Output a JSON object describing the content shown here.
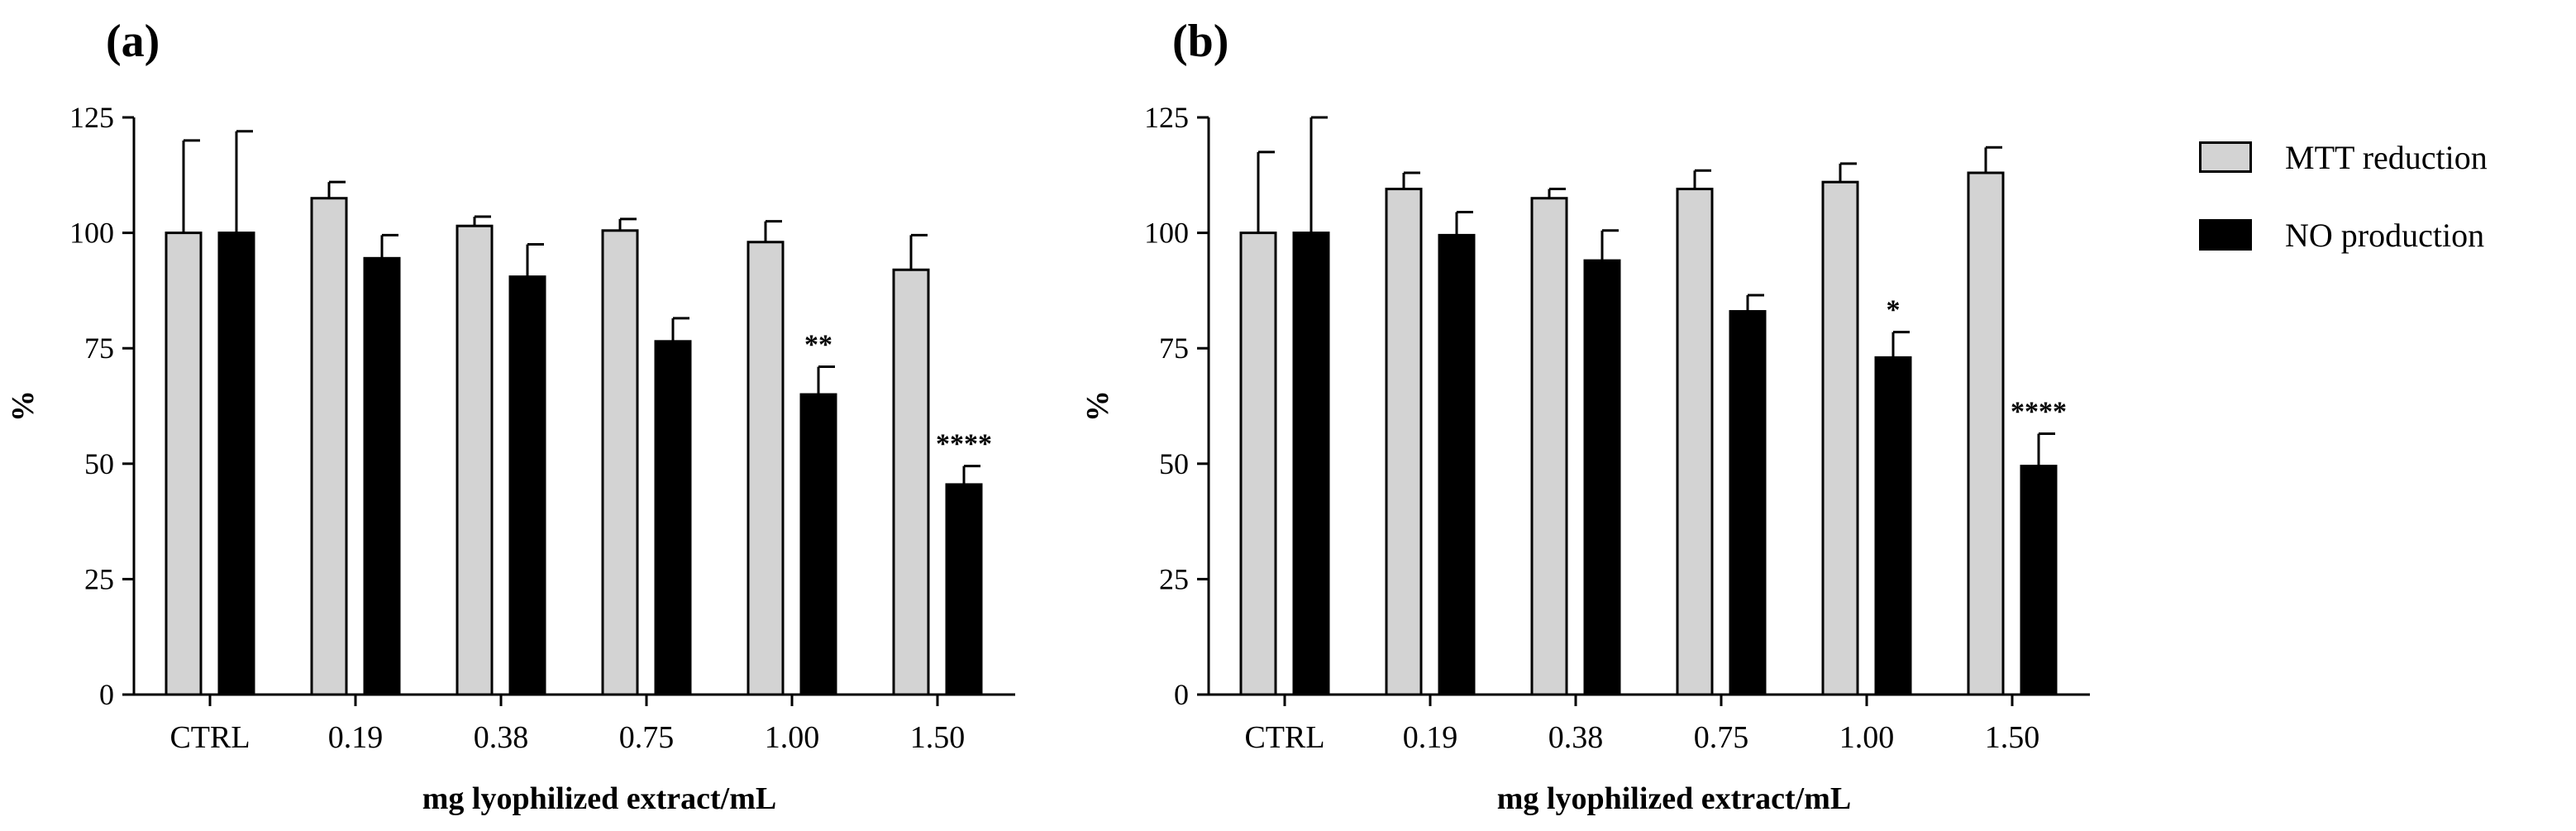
{
  "chart_data": [
    {
      "type": "bar",
      "panel_label": "(a)",
      "xlabel": "mg lyophilized extract/mL",
      "ylabel": "%",
      "ylim": [
        0,
        125
      ],
      "yticks": [
        0,
        25,
        50,
        75,
        100,
        125
      ],
      "categories": [
        "CTRL",
        "0.19",
        "0.38",
        "0.75",
        "1.00",
        "1.50"
      ],
      "series": [
        {
          "name": "MTT reduction",
          "color": "#d3d3d3",
          "values": [
            100,
            107.5,
            101.5,
            100.5,
            98,
            92
          ],
          "errors": [
            20,
            3.5,
            2,
            2.5,
            4.5,
            7.5
          ],
          "significance": [
            "",
            "",
            "",
            "",
            "",
            ""
          ]
        },
        {
          "name": "NO production",
          "color": "#000000",
          "values": [
            100,
            94.5,
            90.5,
            76.5,
            65,
            45.5
          ],
          "errors": [
            22,
            5,
            7,
            5,
            6,
            4
          ],
          "significance": [
            "",
            "",
            "",
            "",
            "**",
            "****"
          ]
        }
      ],
      "grid": false
    },
    {
      "type": "bar",
      "panel_label": "(b)",
      "xlabel": "mg lyophilized extract/mL",
      "ylabel": "%",
      "ylim": [
        0,
        125
      ],
      "yticks": [
        0,
        25,
        50,
        75,
        100,
        125
      ],
      "categories": [
        "CTRL",
        "0.19",
        "0.38",
        "0.75",
        "1.00",
        "1.50"
      ],
      "series": [
        {
          "name": "MTT reduction",
          "color": "#d3d3d3",
          "values": [
            100,
            109.5,
            107.5,
            109.5,
            111,
            113
          ],
          "errors": [
            17.5,
            3.5,
            2,
            4,
            4,
            5.5
          ],
          "significance": [
            "",
            "",
            "",
            "",
            "",
            ""
          ]
        },
        {
          "name": "NO production",
          "color": "#000000",
          "values": [
            100,
            99.5,
            94,
            83,
            73,
            49.5
          ],
          "errors": [
            25,
            5,
            6.5,
            3.5,
            5.5,
            7
          ],
          "significance": [
            "",
            "",
            "",
            "",
            "*",
            "****"
          ]
        }
      ],
      "grid": false
    }
  ],
  "legend": {
    "placement": "right",
    "items": [
      {
        "label": "MTT reduction",
        "color": "#d3d3d3"
      },
      {
        "label": "NO production",
        "color": "#000000"
      }
    ]
  }
}
